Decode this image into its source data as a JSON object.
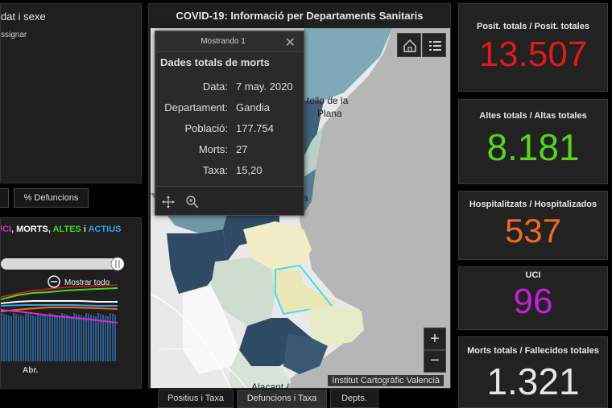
{
  "left_panel": {
    "title": "dat i sexe",
    "subtitle": "ssignar"
  },
  "left_tabs": [
    {
      "label": ""
    },
    {
      "label": "% Defuncions"
    }
  ],
  "left_chart": {
    "legend": {
      "uci": "UCI",
      "sep1": ", ",
      "morts": "MORTS",
      "sep2": ", ",
      "altes": "ALTES",
      "sep3": " i ",
      "actius": "ACTIUS"
    },
    "zoom_label": "Mostrar todo",
    "x_tick": "Abr."
  },
  "colors": {
    "uci": "#d62ad8",
    "morts": "#ffffff",
    "altes": "#47d61b",
    "actius": "#2fa3e6",
    "positius": "#e01a1a",
    "altes_value": "#55d61b",
    "hospitalitzats": "#f06a1d",
    "uci_value": "#c21fd6",
    "morts_value": "#e6e6e6"
  },
  "map": {
    "title": "COVID-19: Informació per Departaments Sanitaris",
    "attribution": "Institut Cartogràfic Valencià",
    "labels": {
      "city1": "tello de la",
      "city2": "Plana",
      "city3": "a",
      "city4": "Alacant /"
    },
    "zoom_in": "+",
    "zoom_out": "−"
  },
  "popup": {
    "counter": "Mostrando 1",
    "title": "Dades totals de morts",
    "rows": [
      {
        "key": "Data:",
        "value": "7 may. 2020"
      },
      {
        "key": "Departament:",
        "value": "Gandia"
      },
      {
        "key": "Població:",
        "value": "177.754"
      },
      {
        "key": "Morts:",
        "value": "27"
      },
      {
        "key": "Taxa:",
        "value": "15,20"
      }
    ]
  },
  "bottom_tabs": [
    {
      "label": "Positius i Taxa"
    },
    {
      "label": "Defuncions i Taxa"
    },
    {
      "label": "Depts."
    }
  ],
  "stats": [
    {
      "label": "Posit. totals / Posit. totales",
      "value": "13.507"
    },
    {
      "label": "Altes totals / Altas totales",
      "value": "8.181"
    },
    {
      "label": "Hospitalitzats / Hospitalizados",
      "value": "537"
    },
    {
      "label": "UCI",
      "value": "96"
    },
    {
      "label": "Morts totals / Fallecidos totales",
      "value": "1.321"
    }
  ]
}
